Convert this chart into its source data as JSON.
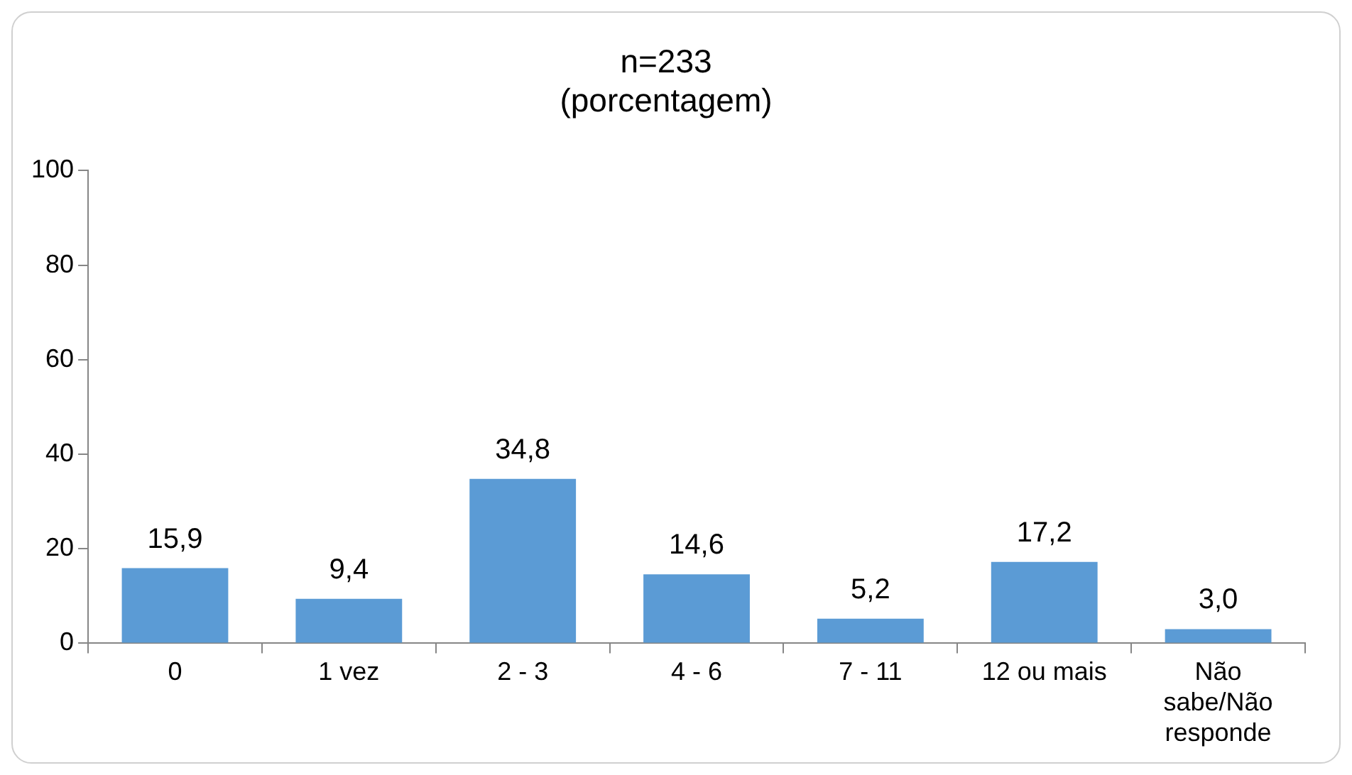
{
  "chart_data": {
    "type": "bar",
    "title": "n=233",
    "subtitle": "(porcentagem)",
    "categories": [
      "0",
      "1 vez",
      "2 - 3",
      "4 - 6",
      "7 - 11",
      "12 ou mais",
      "Não sabe/Não responde"
    ],
    "values": [
      15.9,
      9.4,
      34.8,
      14.6,
      5.2,
      17.2,
      3.0
    ],
    "value_labels": [
      "15,9",
      "9,4",
      "34,8",
      "14,6",
      "5,2",
      "17,2",
      "3,0"
    ],
    "color": "#5b9bd5",
    "ylim": [
      0,
      100
    ],
    "yticks": [
      0,
      20,
      40,
      60,
      80,
      100
    ],
    "legend": false
  }
}
